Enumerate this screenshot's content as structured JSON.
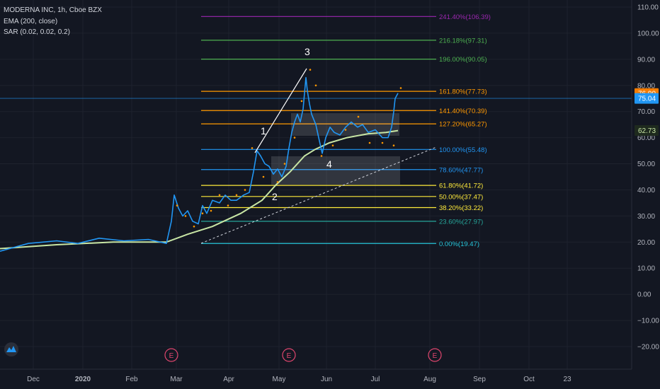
{
  "header": {
    "symbol": "MODERNA INC, 1h, Cboe BZX",
    "ema": "EMA (200, close)",
    "sar": "SAR (0.02, 0.02, 0.2)"
  },
  "colors": {
    "background": "#131722",
    "grid": "#1e222d",
    "axis_text": "#b2b5be",
    "price_line": "#2196f3",
    "ema_line": "#c8e6a5",
    "sar_dots": "#ff9800",
    "wave_line": "#ffffff",
    "trend_line": "#d1d4dc",
    "box_fill": "#ffffff",
    "last_price_badge": "#f57c00",
    "ema_badge": "#2196f3",
    "sar_badge": "#c8e6a5",
    "event_marker": "#e0466e"
  },
  "chart_data": {
    "type": "line",
    "title": "MODERNA INC, 1h, Cboe BZX",
    "x_ticks": [
      "Dec",
      "2020",
      "Feb",
      "Mar",
      "Apr",
      "May",
      "Jun",
      "Jul",
      "Aug",
      "Sep",
      "Oct",
      "23"
    ],
    "y_ticks": [
      "110.00",
      "100.00",
      "90.00",
      "80.00",
      "70.00",
      "60.00",
      "50.00",
      "40.00",
      "30.00",
      "20.00",
      "10.00",
      "0.00",
      "−10.00",
      "−20.00"
    ],
    "ylim": [
      -25,
      113
    ],
    "y_tick_values": [
      110,
      100,
      90,
      80,
      70,
      60,
      50,
      40,
      30,
      20,
      10,
      0,
      -10,
      -20
    ],
    "series": [
      {
        "name": "MODERNA INC",
        "values": [
          [
            0,
            16.5
          ],
          [
            40,
            19.5
          ],
          [
            80,
            20.5
          ],
          [
            110,
            19.5
          ],
          [
            140,
            21.5
          ],
          [
            175,
            20.5
          ],
          [
            210,
            21
          ],
          [
            235,
            19.5
          ],
          [
            242,
            28
          ],
          [
            246,
            38
          ],
          [
            252,
            33
          ],
          [
            258,
            30
          ],
          [
            265,
            32
          ],
          [
            272,
            28
          ],
          [
            280,
            27
          ],
          [
            286,
            34
          ],
          [
            292,
            31
          ],
          [
            300,
            36
          ],
          [
            310,
            35
          ],
          [
            318,
            38
          ],
          [
            326,
            36
          ],
          [
            334,
            36
          ],
          [
            344,
            38
          ],
          [
            352,
            39
          ],
          [
            358,
            47
          ],
          [
            363,
            55
          ],
          [
            368,
            53
          ],
          [
            374,
            50
          ],
          [
            380,
            49
          ],
          [
            386,
            46
          ],
          [
            392,
            48
          ],
          [
            398,
            45
          ],
          [
            404,
            49
          ],
          [
            408,
            56
          ],
          [
            412,
            62
          ],
          [
            416,
            66
          ],
          [
            420,
            69
          ],
          [
            424,
            66
          ],
          [
            428,
            71
          ],
          [
            432,
            83
          ],
          [
            434,
            78
          ],
          [
            437,
            73
          ],
          [
            440,
            69
          ],
          [
            446,
            65
          ],
          [
            450,
            60
          ],
          [
            455,
            54
          ],
          [
            460,
            60
          ],
          [
            466,
            64
          ],
          [
            472,
            62
          ],
          [
            480,
            61
          ],
          [
            488,
            64
          ],
          [
            496,
            66
          ],
          [
            505,
            64
          ],
          [
            512,
            65
          ],
          [
            520,
            62
          ],
          [
            530,
            63
          ],
          [
            540,
            60
          ],
          [
            548,
            60
          ],
          [
            553,
            64
          ],
          [
            556,
            70
          ],
          [
            558,
            75
          ],
          [
            562,
            77
          ]
        ]
      },
      {
        "name": "EMA (200, close)",
        "values": [
          [
            0,
            17.5
          ],
          [
            80,
            19
          ],
          [
            160,
            20
          ],
          [
            235,
            20
          ],
          [
            265,
            23
          ],
          [
            300,
            26
          ],
          [
            340,
            31
          ],
          [
            370,
            36
          ],
          [
            390,
            42
          ],
          [
            410,
            47
          ],
          [
            430,
            53
          ],
          [
            445,
            55.5
          ],
          [
            465,
            58
          ],
          [
            490,
            60
          ],
          [
            520,
            61.5
          ],
          [
            545,
            62
          ],
          [
            562,
            62.7
          ]
        ]
      }
    ],
    "sar_values": [
      [
        250,
        34
      ],
      [
        262,
        30
      ],
      [
        274,
        26
      ],
      [
        286,
        31
      ],
      [
        298,
        32
      ],
      [
        310,
        38
      ],
      [
        322,
        34
      ],
      [
        334,
        38
      ],
      [
        346,
        40
      ],
      [
        356,
        56
      ],
      [
        372,
        45
      ],
      [
        392,
        43
      ],
      [
        402,
        50
      ],
      [
        416,
        60
      ],
      [
        426,
        74
      ],
      [
        438,
        86
      ],
      [
        446,
        80
      ],
      [
        454,
        53
      ],
      [
        470,
        57
      ],
      [
        488,
        63
      ],
      [
        506,
        68
      ],
      [
        522,
        58
      ],
      [
        540,
        58
      ],
      [
        556,
        57
      ],
      [
        566,
        79
      ]
    ],
    "fib_levels": [
      {
        "label": "241.40%(106.39)",
        "value": 106.39,
        "color": "#9c27b0"
      },
      {
        "label": "216.18%(97.31)",
        "value": 97.31,
        "color": "#4caf50"
      },
      {
        "label": "196.00%(90.05)",
        "value": 90.05,
        "color": "#4caf50"
      },
      {
        "label": "161.80%(77.73)",
        "value": 77.73,
        "color": "#ff9800"
      },
      {
        "label": "141.40%(70.39)",
        "value": 70.39,
        "color": "#ff9800"
      },
      {
        "label": "127.20%(65.27)",
        "value": 65.27,
        "color": "#ff9800"
      },
      {
        "label": "100.00%(55.48)",
        "value": 55.48,
        "color": "#2196f3"
      },
      {
        "label": "78.60%(47.77)",
        "value": 47.77,
        "color": "#2196f3"
      },
      {
        "label": "61.80%(41.72)",
        "value": 41.72,
        "color": "#ffeb3b"
      },
      {
        "label": "50.00%(37.47)",
        "value": 37.47,
        "color": "#ffeb3b"
      },
      {
        "label": "38.20%(33.22)",
        "value": 33.22,
        "color": "#ffeb3b"
      },
      {
        "label": "23.60%(27.97)",
        "value": 27.97,
        "color": "#26a69a"
      },
      {
        "label": "0.00%(19.47)",
        "value": 19.47,
        "color": "#26c6da"
      }
    ],
    "wave_labels": [
      "1",
      "2",
      "3",
      "4"
    ],
    "price_badges": [
      {
        "text": "76.90",
        "value": 76.9,
        "bg": "#f57c00",
        "fg": "#ffffff"
      },
      {
        "text": "75.04",
        "value": 75.04,
        "bg": "#2196f3",
        "fg": "#ffffff"
      },
      {
        "text": "62.73",
        "value": 62.73,
        "bg": "#1e2a1e",
        "fg": "#c8e6a5"
      }
    ],
    "event_label": "E",
    "grid": true
  }
}
